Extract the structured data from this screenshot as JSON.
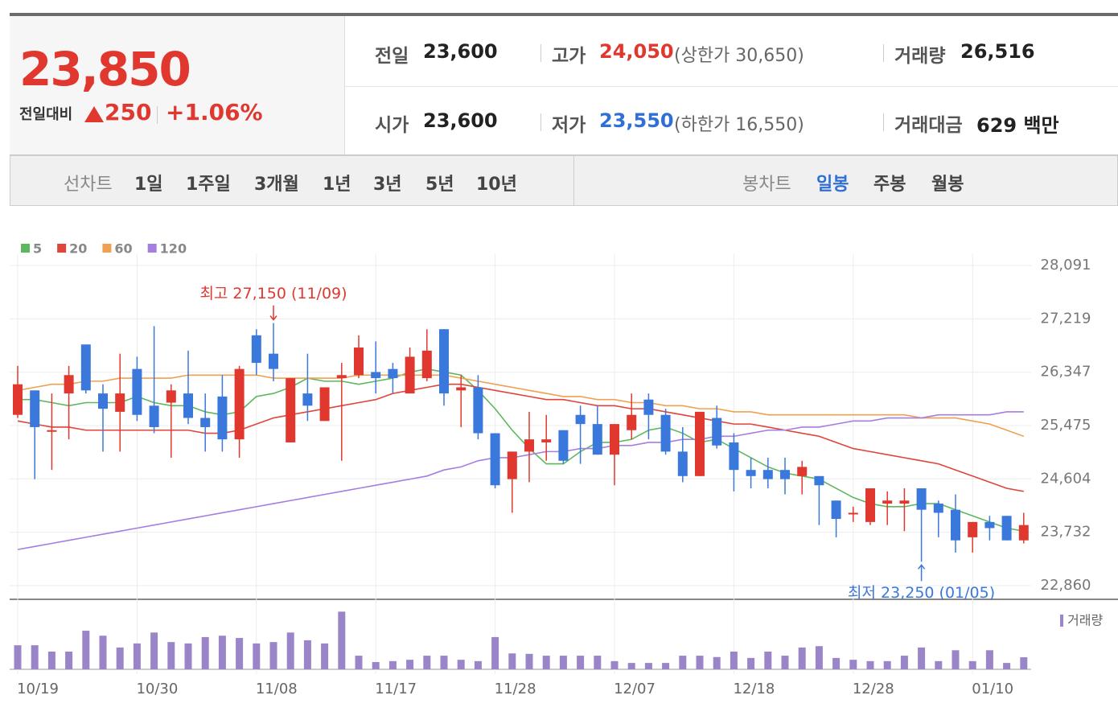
{
  "header": {
    "price": "23,850",
    "change_label": "전일대비",
    "change": "250",
    "change_rate": "+1.06%",
    "stats": [
      {
        "label": "전일",
        "value": "23,600"
      },
      {
        "label": "고가",
        "value": "24,050",
        "note": "(상한가 30,650)"
      },
      {
        "label": "거래량",
        "value": "26,516"
      },
      {
        "label": "시가",
        "value": "23,600"
      },
      {
        "label": "저가",
        "value": "23,550",
        "note": "(하한가 16,550)"
      },
      {
        "label": "거래대금",
        "value": "629 백만"
      }
    ]
  },
  "tabs": {
    "line_label": "선차트",
    "line": [
      "1일",
      "1주일",
      "3개월",
      "1년",
      "3년",
      "5년",
      "10년"
    ],
    "candle_label": "봉차트",
    "candle": [
      "일봉",
      "주봉",
      "월봉"
    ]
  },
  "chart_data": {
    "type": "candlestick",
    "up_color": "#e0382e",
    "down_color": "#3b78dc",
    "categories": [
      "10/19",
      null,
      null,
      null,
      null,
      null,
      null,
      "10/30",
      null,
      null,
      null,
      null,
      null,
      null,
      "11/08",
      null,
      null,
      null,
      null,
      null,
      null,
      "11/17",
      null,
      null,
      null,
      null,
      null,
      null,
      "11/28",
      null,
      null,
      null,
      null,
      null,
      null,
      "12/07",
      null,
      null,
      null,
      null,
      null,
      null,
      "12/18",
      null,
      null,
      null,
      null,
      null,
      null,
      "12/28",
      null,
      null,
      null,
      null,
      null,
      null,
      "01/10",
      null,
      null,
      null
    ],
    "open": [
      25650,
      26050,
      25400,
      26000,
      26800,
      26000,
      25700,
      26400,
      25800,
      25850,
      26000,
      25600,
      25950,
      25250,
      26950,
      26650,
      25200,
      26000,
      25550,
      26250,
      26300,
      26350,
      26400,
      26000,
      26250,
      27050,
      26050,
      26100,
      25350,
      24600,
      25050,
      25200,
      25400,
      25650,
      25500,
      25000,
      25400,
      25900,
      25650,
      25050,
      24650,
      25600,
      25200,
      24750,
      24750,
      24750,
      24650,
      24650,
      24250,
      24050,
      23900,
      24200,
      24200,
      24450,
      24200,
      24100,
      23650,
      23900,
      24000,
      23600
    ],
    "high": [
      26450,
      26050,
      26000,
      26450,
      26800,
      26150,
      26650,
      26600,
      27100,
      26150,
      26700,
      26000,
      26300,
      26450,
      27050,
      27150,
      26250,
      26650,
      26100,
      26500,
      26950,
      26850,
      26500,
      26750,
      27050,
      27050,
      26300,
      26300,
      25350,
      25050,
      25700,
      25650,
      25400,
      25800,
      25800,
      25500,
      26000,
      26000,
      25750,
      25450,
      25700,
      25800,
      25350,
      24950,
      24950,
      24950,
      24900,
      24650,
      24250,
      24150,
      24450,
      24400,
      24450,
      24450,
      24250,
      24350,
      23900,
      24000,
      24000,
      24050
    ],
    "low": [
      25600,
      24600,
      24750,
      25250,
      26000,
      25050,
      25050,
      25550,
      25350,
      24950,
      25500,
      25050,
      25050,
      24950,
      26300,
      26200,
      25200,
      25550,
      25550,
      24900,
      26250,
      26000,
      26000,
      26000,
      26200,
      25800,
      25450,
      25250,
      24450,
      24050,
      24550,
      24900,
      24850,
      24850,
      25000,
      24500,
      25250,
      25250,
      25000,
      24550,
      24650,
      25100,
      24400,
      24450,
      24450,
      24350,
      24350,
      23850,
      23650,
      23900,
      23850,
      23850,
      23750,
      23250,
      23650,
      23400,
      23400,
      23600,
      23600,
      23550
    ],
    "close": [
      26150,
      25450,
      25400,
      26300,
      26050,
      25750,
      26000,
      25650,
      25450,
      26050,
      25600,
      25450,
      25250,
      26400,
      26500,
      26400,
      26250,
      25800,
      26100,
      26300,
      26750,
      26250,
      26250,
      26600,
      26700,
      26000,
      26100,
      25350,
      24500,
      25050,
      25250,
      25250,
      24900,
      25500,
      25000,
      25500,
      25650,
      25650,
      25050,
      24650,
      25700,
      25150,
      24750,
      24650,
      24600,
      24600,
      24800,
      24500,
      23950,
      24050,
      24450,
      24250,
      24250,
      24100,
      24050,
      23600,
      23900,
      23800,
      23600,
      23850
    ],
    "moving_averages": [
      {
        "name": "5",
        "color": "#5cb85c",
        "values": [
          25900,
          25900,
          25850,
          25800,
          25850,
          25850,
          25850,
          25950,
          25850,
          25800,
          25800,
          25700,
          25650,
          25700,
          25950,
          26000,
          26100,
          26250,
          26200,
          26200,
          26150,
          26200,
          26250,
          26350,
          26400,
          26350,
          26300,
          26050,
          25750,
          25400,
          25100,
          24850,
          24850,
          25050,
          25200,
          25200,
          25250,
          25400,
          25450,
          25350,
          25200,
          25250,
          25100,
          24950,
          24800,
          24700,
          24650,
          24600,
          24450,
          24300,
          24200,
          24150,
          24150,
          24200,
          24200,
          24100,
          24000,
          23900,
          23800,
          23750
        ]
      },
      {
        "name": "20",
        "color": "#e0443a",
        "values": [
          25550,
          25500,
          25450,
          25450,
          25400,
          25400,
          25400,
          25400,
          25400,
          25400,
          25400,
          25350,
          25350,
          25400,
          25500,
          25600,
          25650,
          25700,
          25750,
          25800,
          25850,
          25900,
          26000,
          26050,
          26100,
          26150,
          26150,
          26100,
          26050,
          26000,
          25950,
          25900,
          25900,
          25850,
          25800,
          25800,
          25750,
          25750,
          25700,
          25650,
          25600,
          25550,
          25500,
          25500,
          25450,
          25400,
          25350,
          25300,
          25200,
          25100,
          25050,
          25000,
          24950,
          24900,
          24850,
          24750,
          24650,
          24550,
          24450,
          24400
        ]
      },
      {
        "name": "60",
        "color": "#f0a050",
        "values": [
          26050,
          26100,
          26150,
          26150,
          26200,
          26200,
          26250,
          26250,
          26250,
          26250,
          26300,
          26300,
          26300,
          26300,
          26300,
          26250,
          26250,
          26250,
          26250,
          26250,
          26300,
          26300,
          26300,
          26300,
          26300,
          26300,
          26250,
          26200,
          26150,
          26100,
          26050,
          26000,
          25950,
          25950,
          25900,
          25900,
          25850,
          25850,
          25800,
          25800,
          25750,
          25750,
          25700,
          25700,
          25650,
          25650,
          25650,
          25650,
          25650,
          25650,
          25650,
          25650,
          25650,
          25600,
          25600,
          25600,
          25550,
          25500,
          25400,
          25300
        ]
      },
      {
        "name": "120",
        "color": "#a67de0",
        "values": [
          23450,
          23500,
          23550,
          23600,
          23650,
          23700,
          23750,
          23800,
          23850,
          23900,
          23950,
          24000,
          24050,
          24100,
          24150,
          24200,
          24250,
          24300,
          24350,
          24400,
          24450,
          24500,
          24550,
          24600,
          24650,
          24750,
          24800,
          24900,
          24950,
          24950,
          25000,
          25050,
          25050,
          25100,
          25100,
          25150,
          25150,
          25200,
          25200,
          25250,
          25250,
          25300,
          25300,
          25350,
          25400,
          25400,
          25450,
          25450,
          25500,
          25550,
          25550,
          25600,
          25600,
          25600,
          25650,
          25650,
          25650,
          25650,
          25700,
          25700
        ]
      }
    ],
    "volume": {
      "name": "거래량",
      "color": "#9b85c9",
      "ylim": [
        0,
        140000
      ],
      "values": [
        53000,
        53000,
        39000,
        39000,
        85000,
        74000,
        48000,
        57000,
        81000,
        60000,
        57000,
        71000,
        74000,
        69000,
        57000,
        60000,
        81000,
        64000,
        57000,
        127000,
        30000,
        16000,
        18000,
        21000,
        30000,
        30000,
        21000,
        18000,
        71000,
        35000,
        34000,
        30000,
        30000,
        30000,
        30000,
        18000,
        14000,
        14000,
        14000,
        30000,
        30000,
        27000,
        39000,
        25000,
        39000,
        30000,
        48000,
        51000,
        25000,
        21000,
        18000,
        18000,
        30000,
        48000,
        18000,
        42000,
        18000,
        42000,
        14000,
        26516
      ]
    },
    "ylim": [
      22860,
      28091
    ],
    "yticks": [
      {
        "value": 22860,
        "label": "22,860"
      },
      {
        "value": 23732,
        "label": "23,732"
      },
      {
        "value": 24604,
        "label": "24,604"
      },
      {
        "value": 25475,
        "label": "25,475"
      },
      {
        "value": 26347,
        "label": "26,347"
      },
      {
        "value": 27219,
        "label": "27,219"
      },
      {
        "value": 28091,
        "label": "28,091"
      }
    ],
    "annotations": [
      {
        "text": "최고 27,150 (11/09)",
        "index": 15,
        "kind": "high"
      },
      {
        "text": "최저 23,250 (01/05)",
        "index": 53,
        "kind": "low"
      }
    ],
    "grid": true
  }
}
